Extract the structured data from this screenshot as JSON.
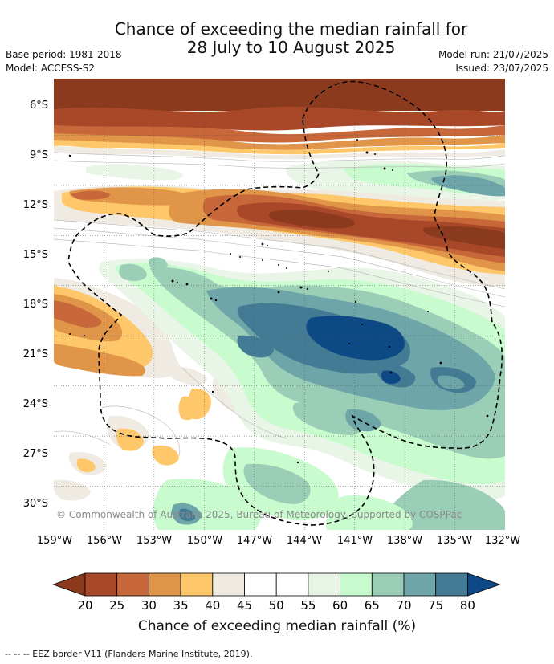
{
  "title": {
    "line1": "Chance of exceeding the median rainfall for",
    "line2": "28 July to 10 August 2025"
  },
  "meta": {
    "base_period": "Base period: 1981-2018",
    "model": "Model: ACCESS-S2",
    "model_run": "Model run: 21/07/2025",
    "issued": "Issued: 23/07/2025"
  },
  "map": {
    "lat_labels": [
      "6°S",
      "9°S",
      "12°S",
      "15°S",
      "18°S",
      "21°S",
      "24°S",
      "27°S",
      "30°S"
    ],
    "lon_labels": [
      "159°W",
      "156°W",
      "153°W",
      "150°W",
      "147°W",
      "144°W",
      "141°W",
      "138°W",
      "135°W",
      "132°W"
    ],
    "lon_range": [
      -159,
      -132
    ],
    "lat_range": [
      -4.5,
      -31.5
    ],
    "copyright": "© Commonwealth of Australia 2025, Bureau of Meteorology, supported by COSPPac"
  },
  "colorbar": {
    "title": "Chance of exceeding median rainfall (%)",
    "ticks": [
      "20",
      "25",
      "30",
      "35",
      "40",
      "45",
      "50",
      "55",
      "60",
      "65",
      "70",
      "75",
      "80"
    ],
    "low_extend_color": "#8b3a1e",
    "high_extend_color": "#0d4a85",
    "colors": [
      "#a84828",
      "#c8683a",
      "#e09548",
      "#fec86a",
      "#efebe3",
      "#ffffff",
      "#ffffff",
      "#e9f5e7",
      "#c8fbcd",
      "#9bceb6",
      "#6da5a8",
      "#437b95"
    ]
  },
  "legend_note": "--  --  -- EEZ border V11 (Flanders Marine Institute, 2019)."
}
